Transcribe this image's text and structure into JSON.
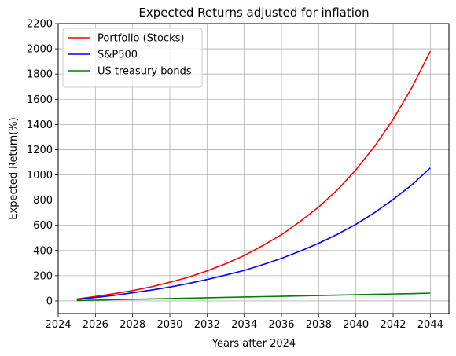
{
  "chart_data": {
    "type": "line",
    "title": "Expected Returns adjusted for inflation",
    "xlabel": "Years after 2024",
    "ylabel": "Expected Return(%)",
    "xlim": [
      2024,
      2045
    ],
    "ylim": [
      -100,
      2200
    ],
    "xticks": [
      2024,
      2026,
      2028,
      2030,
      2032,
      2034,
      2036,
      2038,
      2040,
      2042,
      2044
    ],
    "yticks": [
      0,
      200,
      400,
      600,
      800,
      1000,
      1200,
      1400,
      1600,
      1800,
      2000,
      2200
    ],
    "grid": true,
    "legend_position": "top-left",
    "x": [
      2025,
      2026,
      2027,
      2028,
      2029,
      2030,
      2031,
      2032,
      2033,
      2034,
      2035,
      2036,
      2037,
      2038,
      2039,
      2040,
      2041,
      2042,
      2043,
      2044
    ],
    "series": [
      {
        "name": "Portfolio (Stocks)",
        "color": "#ff0000",
        "values": [
          15,
          35,
          58,
          82,
          112,
          148,
          188,
          238,
          295,
          360,
          440,
          525,
          630,
          745,
          880,
          1040,
          1225,
          1440,
          1690,
          1980
        ]
      },
      {
        "name": "S&P500",
        "color": "#0000ff",
        "values": [
          12,
          27,
          44,
          65,
          86,
          110,
          138,
          170,
          205,
          242,
          288,
          338,
          395,
          457,
          528,
          608,
          700,
          805,
          920,
          1055
        ]
      },
      {
        "name": "US treasury bonds",
        "color": "#008000",
        "values": [
          3,
          6,
          10,
          13,
          16,
          19,
          22,
          25,
          28,
          31,
          34,
          37,
          40,
          43,
          46,
          49,
          52,
          55,
          58,
          62
        ]
      }
    ]
  }
}
